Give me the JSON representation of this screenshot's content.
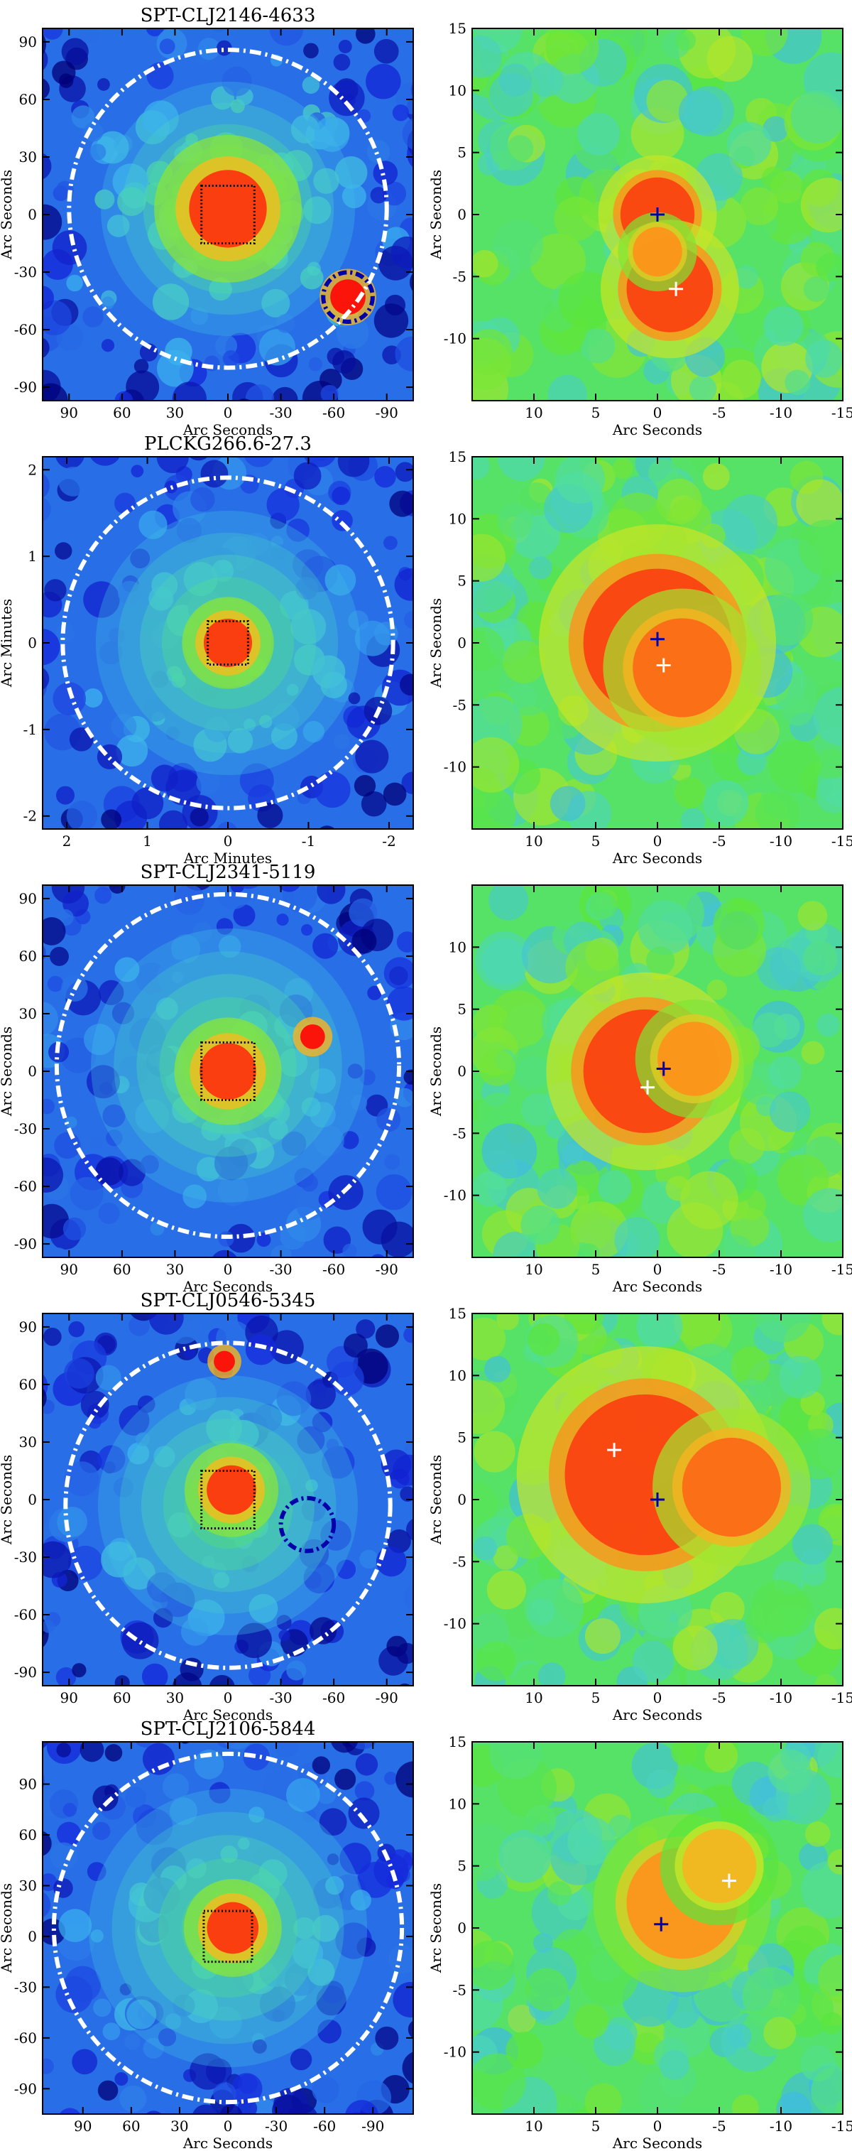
{
  "figure": {
    "rows": [
      {
        "title": "SPT-CLJ2146-4633",
        "wide": {
          "xlabel": "Arc Seconds",
          "ylabel": "Arc Seconds",
          "xlim": [
            105,
            -105
          ],
          "ylim": [
            -97,
            97
          ],
          "xticks": [
            90,
            60,
            30,
            0,
            -30,
            -60,
            -90
          ],
          "yticks": [
            90,
            60,
            30,
            0,
            -30,
            -60,
            -90
          ],
          "big_circle": {
            "cx": 0,
            "cy": 3,
            "r": 90,
            "color": "#ffffff"
          },
          "small_circles": [
            {
              "cx": -68,
              "cy": -43,
              "r": 14,
              "color": "#0000aa"
            }
          ],
          "box": {
            "x": [
              -15,
              15
            ],
            "y": [
              -15,
              15
            ]
          },
          "core_blob": {
            "cx": 0,
            "cy": 3,
            "r": 22
          },
          "point_sources": [
            {
              "cx": -68,
              "cy": -43,
              "r": 10
            }
          ],
          "level": 1.0
        },
        "zoom": {
          "xlabel": "Arc Seconds",
          "ylabel": "Arc Seconds",
          "xlim": [
            15,
            -15
          ],
          "ylim": [
            -15,
            15
          ],
          "xticks": [
            10,
            5,
            0,
            -5,
            -10,
            -15
          ],
          "yticks": [
            15,
            10,
            5,
            0,
            -5,
            -10
          ],
          "crosses": [
            {
              "x": 0,
              "y": 0,
              "color": "#0000aa"
            },
            {
              "x": -1.5,
              "y": -6,
              "color": "#ffffff"
            }
          ],
          "blobs": [
            {
              "x": 0,
              "y": 0,
              "r": 3,
              "v": 0.95
            },
            {
              "x": -1,
              "y": -6,
              "r": 3.5,
              "v": 0.95
            },
            {
              "x": 0,
              "y": -3,
              "r": 2,
              "v": 0.85
            }
          ],
          "level": 0.8
        }
      },
      {
        "title": "PLCKG266.6-27.3",
        "wide": {
          "xlabel": "Arc Minutes",
          "ylabel": "Arc Minutes",
          "xlim": [
            2.3,
            -2.3
          ],
          "ylim": [
            -2.15,
            2.15
          ],
          "xticks": [
            2,
            1,
            0,
            -1,
            -2
          ],
          "yticks": [
            2,
            1,
            0,
            -1,
            -2
          ],
          "big_circle": {
            "cx": 0,
            "cy": 0,
            "r": 2.05,
            "color": "#ffffff"
          },
          "small_circles": [],
          "box": {
            "x": [
              -0.25,
              0.25
            ],
            "y": [
              -0.25,
              0.25
            ]
          },
          "core_blob": {
            "cx": 0,
            "cy": 0,
            "r": 0.3
          },
          "point_sources": [],
          "level": 0.55
        },
        "zoom": {
          "xlabel": "Arc Seconds",
          "ylabel": "Arc Seconds",
          "xlim": [
            15,
            -15
          ],
          "ylim": [
            -15,
            15
          ],
          "xticks": [
            10,
            5,
            0,
            -5,
            -10,
            -15
          ],
          "yticks": [
            15,
            10,
            5,
            0,
            -5,
            -10
          ],
          "crosses": [
            {
              "x": 0,
              "y": 0.3,
              "color": "#0000aa"
            },
            {
              "x": -0.5,
              "y": -1.8,
              "color": "#ffffff"
            }
          ],
          "blobs": [
            {
              "x": 0,
              "y": 0,
              "r": 6,
              "v": 0.95
            },
            {
              "x": -2,
              "y": -2,
              "r": 4,
              "v": 0.9
            }
          ],
          "level": 0.7
        }
      },
      {
        "title": "SPT-CLJ2341-5119",
        "wide": {
          "xlabel": "Arc Seconds",
          "ylabel": "Arc Seconds",
          "xlim": [
            105,
            -105
          ],
          "ylim": [
            -97,
            97
          ],
          "xticks": [
            90,
            60,
            30,
            0,
            -30,
            -60,
            -90
          ],
          "yticks": [
            90,
            60,
            30,
            0,
            -30,
            -60,
            -90
          ],
          "big_circle": {
            "cx": 0,
            "cy": 3,
            "r": 97,
            "color": "#ffffff"
          },
          "small_circles": [],
          "box": {
            "x": [
              -15,
              15
            ],
            "y": [
              -15,
              15
            ]
          },
          "core_blob": {
            "cx": 0,
            "cy": 0,
            "r": 16
          },
          "point_sources": [
            {
              "cx": -48,
              "cy": 18,
              "r": 7
            }
          ],
          "level": 0.5
        },
        "zoom": {
          "xlabel": "Arc Seconds",
          "ylabel": "Arc Seconds",
          "xlim": [
            15,
            -15
          ],
          "ylim": [
            -15,
            15
          ],
          "xticks": [
            10,
            5,
            0,
            -5,
            -10,
            -15
          ],
          "yticks": [
            10,
            5,
            0,
            -5,
            -10
          ],
          "crosses": [
            {
              "x": -0.5,
              "y": 0.2,
              "color": "#0000aa"
            },
            {
              "x": 0.8,
              "y": -1.3,
              "color": "#ffffff"
            }
          ],
          "blobs": [
            {
              "x": 1,
              "y": 0,
              "r": 5,
              "v": 0.95
            },
            {
              "x": -3,
              "y": 1,
              "r": 3,
              "v": 0.85
            }
          ],
          "level": 0.6
        }
      },
      {
        "title": "SPT-CLJ0546-5345",
        "wide": {
          "xlabel": "Arc Seconds",
          "ylabel": "Arc Seconds",
          "xlim": [
            105,
            -105
          ],
          "ylim": [
            -97,
            97
          ],
          "xticks": [
            90,
            60,
            30,
            0,
            -30,
            -60,
            -90
          ],
          "yticks": [
            90,
            60,
            30,
            0,
            -30,
            -60,
            -90
          ],
          "big_circle": {
            "cx": 0,
            "cy": -3,
            "r": 92,
            "color": "#ffffff"
          },
          "small_circles": [
            {
              "cx": -45,
              "cy": -13,
              "r": 15,
              "color": "#0000aa"
            }
          ],
          "box": {
            "x": [
              -15,
              15
            ],
            "y": [
              -15,
              15
            ]
          },
          "core_blob": {
            "cx": -2,
            "cy": 5,
            "r": 14
          },
          "point_sources": [
            {
              "cx": 2,
              "cy": 72,
              "r": 6
            }
          ],
          "level": 0.5
        },
        "zoom": {
          "xlabel": "Arc Seconds",
          "ylabel": "Arc Seconds",
          "xlim": [
            15,
            -15
          ],
          "ylim": [
            -15,
            15
          ],
          "xticks": [
            10,
            5,
            0,
            -5,
            -10,
            -15
          ],
          "yticks": [
            15,
            10,
            5,
            0,
            -5,
            -10
          ],
          "crosses": [
            {
              "x": 0,
              "y": 0,
              "color": "#0000aa"
            },
            {
              "x": 3.5,
              "y": 4,
              "color": "#ffffff"
            }
          ],
          "blobs": [
            {
              "x": 1,
              "y": 2,
              "r": 6.5,
              "v": 0.95
            },
            {
              "x": -6,
              "y": 1,
              "r": 4,
              "v": 0.9
            }
          ],
          "level": 0.7
        }
      },
      {
        "title": "SPT-CLJ2106-5844",
        "wide": {
          "xlabel": "Arc Seconds",
          "ylabel": "Arc Seconds",
          "xlim": [
            115,
            -115
          ],
          "ylim": [
            -105,
            115
          ],
          "xticks": [
            90,
            60,
            30,
            0,
            -30,
            -60,
            -90
          ],
          "yticks": [
            90,
            60,
            30,
            0,
            -30,
            -60,
            -90
          ],
          "big_circle": {
            "cx": 0,
            "cy": 5,
            "r": 108,
            "color": "#ffffff"
          },
          "small_circles": [],
          "box": {
            "x": [
              -15,
              15
            ],
            "y": [
              -15,
              15
            ]
          },
          "core_blob": {
            "cx": -3,
            "cy": 5,
            "r": 16
          },
          "point_sources": [],
          "level": 0.5
        },
        "zoom": {
          "xlabel": "Arc Seconds",
          "ylabel": "Arc Seconds",
          "xlim": [
            15,
            -15
          ],
          "ylim": [
            -15,
            15
          ],
          "xticks": [
            10,
            5,
            0,
            -5,
            -10,
            -15
          ],
          "yticks": [
            15,
            10,
            5,
            0,
            -5,
            -10
          ],
          "crosses": [
            {
              "x": -0.3,
              "y": 0.3,
              "color": "#0000aa"
            },
            {
              "x": -5.8,
              "y": 3.8,
              "color": "#ffffff"
            }
          ],
          "blobs": [
            {
              "x": -2,
              "y": 2,
              "r": 4.5,
              "v": 0.85
            },
            {
              "x": -5,
              "y": 5,
              "r": 3,
              "v": 0.8
            }
          ],
          "level": 0.5
        }
      }
    ]
  }
}
